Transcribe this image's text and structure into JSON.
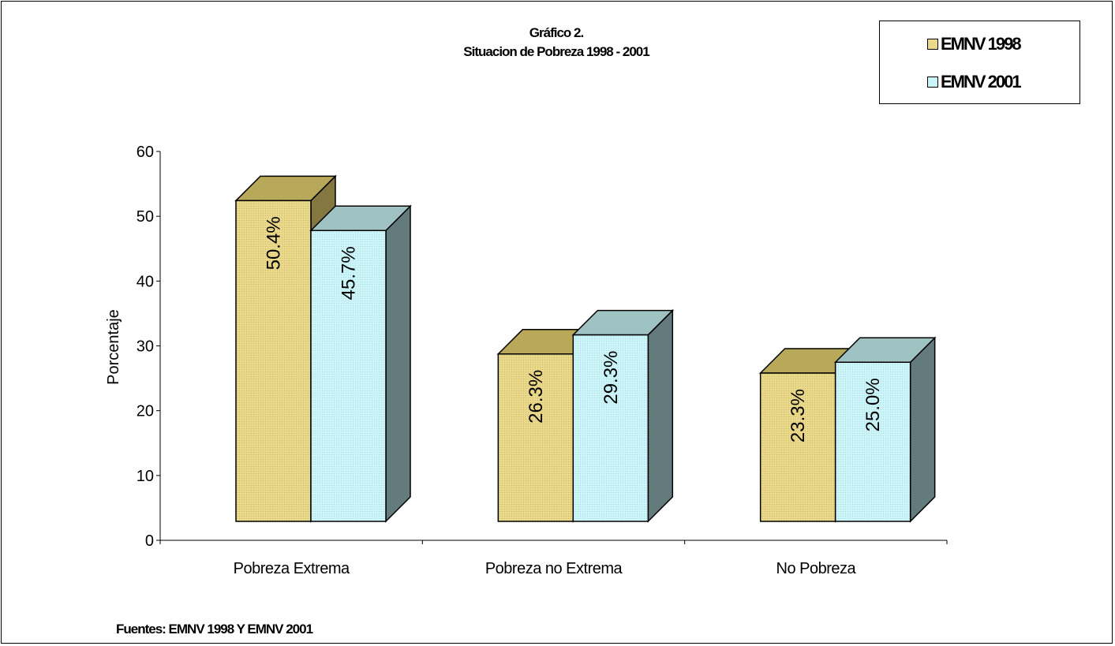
{
  "chart_data": {
    "type": "bar",
    "title_line1": "Gráfico 2.",
    "title_line2": "Situacion de Pobreza 1998 - 2001",
    "ylabel": "Porcentaje",
    "xlabel": "",
    "ylim": [
      0,
      60
    ],
    "yticks": [
      "0",
      "10",
      "20",
      "30",
      "40",
      "50",
      "60"
    ],
    "categories": [
      "Pobreza Extrema",
      "Pobreza no Extrema",
      "No Pobreza"
    ],
    "series": [
      {
        "name": "EMNV 1998",
        "values": [
          50.4,
          26.3,
          23.3
        ],
        "labels": [
          "50.4%",
          "26.3%",
          "23.3%"
        ],
        "color": "#ead98a",
        "top_color": "#b8a85a",
        "side_color": "#857740"
      },
      {
        "name": "EMNV 2001",
        "values": [
          45.7,
          29.3,
          25.0
        ],
        "labels": [
          "45.7%",
          "29.3%",
          "25.0%"
        ],
        "color": "#ccf5fa",
        "top_color": "#9fc2c3",
        "side_color": "#637b7c"
      }
    ],
    "legend_position": "top-right",
    "grid": false,
    "source": "Fuentes: EMNV 1998 Y EMNV 2001"
  }
}
